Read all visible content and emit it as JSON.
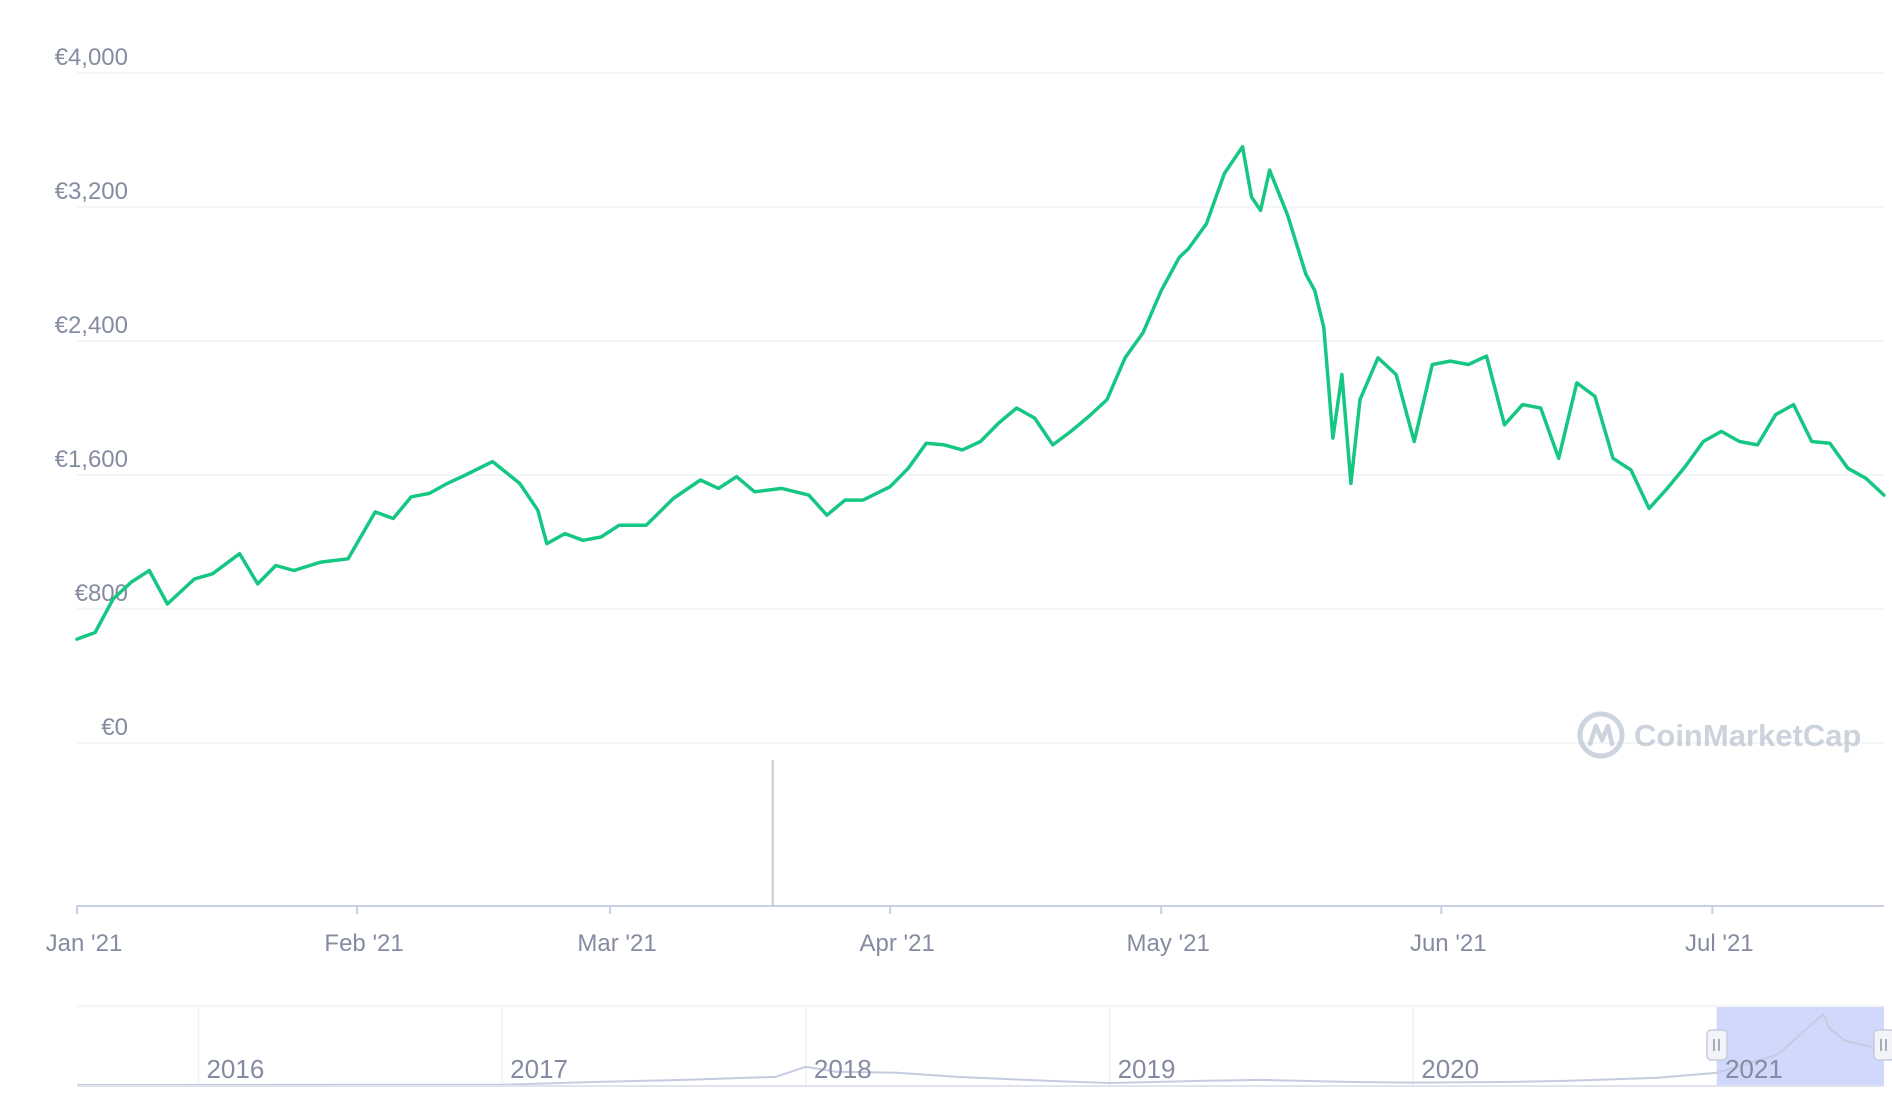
{
  "chart_data": {
    "type": "line",
    "currency": "EUR",
    "watermark": "CoinMarketCap",
    "ylim": [
      0,
      4000
    ],
    "y_ticks": [
      "€0",
      "€800",
      "€1,600",
      "€2,400",
      "€3,200",
      "€4,000"
    ],
    "y_tick_values": [
      0,
      800,
      1600,
      2400,
      3200,
      4000
    ],
    "x_ticks": [
      "Jan '21",
      "Feb '21",
      "Mar '21",
      "Apr '21",
      "May '21",
      "Jun '21",
      "Jul '21"
    ],
    "x_tick_dates": [
      "2021-01-01",
      "2021-02-01",
      "2021-03-01",
      "2021-04-01",
      "2021-05-01",
      "2021-06-01",
      "2021-07-01"
    ],
    "xlim": [
      "2021-01-01",
      "2021-07-20"
    ],
    "line_color": "#16c784",
    "grid": true,
    "series": [
      {
        "x": [
          "2021-01-01",
          "2021-01-03",
          "2021-01-05",
          "2021-01-07",
          "2021-01-09",
          "2021-01-11",
          "2021-01-12",
          "2021-01-14",
          "2021-01-16",
          "2021-01-19",
          "2021-01-21",
          "2021-01-23",
          "2021-01-25",
          "2021-01-28",
          "2021-01-31",
          "2021-02-03",
          "2021-02-05",
          "2021-02-07",
          "2021-02-09",
          "2021-02-11",
          "2021-02-13",
          "2021-02-16",
          "2021-02-19",
          "2021-02-21",
          "2021-02-22",
          "2021-02-24",
          "2021-02-26",
          "2021-02-28",
          "2021-03-02",
          "2021-03-05",
          "2021-03-08",
          "2021-03-11",
          "2021-03-13",
          "2021-03-15",
          "2021-03-17",
          "2021-03-20",
          "2021-03-23",
          "2021-03-25",
          "2021-03-27",
          "2021-03-29",
          "2021-04-01",
          "2021-04-03",
          "2021-04-05",
          "2021-04-07",
          "2021-04-09",
          "2021-04-11",
          "2021-04-13",
          "2021-04-15",
          "2021-04-17",
          "2021-04-19",
          "2021-04-21",
          "2021-04-23",
          "2021-04-25",
          "2021-04-27",
          "2021-04-29",
          "2021-05-01",
          "2021-05-03",
          "2021-05-04",
          "2021-05-06",
          "2021-05-08",
          "2021-05-10",
          "2021-05-11",
          "2021-05-12",
          "2021-05-13",
          "2021-05-15",
          "2021-05-17",
          "2021-05-18",
          "2021-05-19",
          "2021-05-20",
          "2021-05-21",
          "2021-05-22",
          "2021-05-23",
          "2021-05-25",
          "2021-05-27",
          "2021-05-29",
          "2021-05-31",
          "2021-06-02",
          "2021-06-04",
          "2021-06-06",
          "2021-06-08",
          "2021-06-10",
          "2021-06-12",
          "2021-06-14",
          "2021-06-16",
          "2021-06-18",
          "2021-06-20",
          "2021-06-22",
          "2021-06-24",
          "2021-06-26",
          "2021-06-28",
          "2021-06-30",
          "2021-07-02",
          "2021-07-04",
          "2021-07-06",
          "2021-07-08",
          "2021-07-10",
          "2021-07-12",
          "2021-07-14",
          "2021-07-16",
          "2021-07-18",
          "2021-07-20"
        ],
        "y": [
          620,
          660,
          860,
          960,
          1030,
          830,
          880,
          980,
          1010,
          1130,
          950,
          1060,
          1030,
          1080,
          1100,
          1380,
          1340,
          1470,
          1490,
          1550,
          1600,
          1680,
          1550,
          1390,
          1190,
          1250,
          1210,
          1230,
          1300,
          1300,
          1460,
          1570,
          1520,
          1590,
          1500,
          1520,
          1480,
          1360,
          1450,
          1450,
          1530,
          1640,
          1790,
          1780,
          1750,
          1800,
          1910,
          2000,
          1940,
          1780,
          1860,
          1950,
          2050,
          2300,
          2450,
          2700,
          2900,
          2950,
          3100,
          3400,
          3560,
          3260,
          3180,
          3420,
          3150,
          2800,
          2700,
          2480,
          1820,
          2200,
          1550,
          2050,
          2300,
          2200,
          1800,
          2260,
          2280,
          2260,
          2310,
          1900,
          2020,
          2000,
          1700,
          2150,
          2070,
          1700,
          1630,
          1400,
          1520,
          1650,
          1800,
          1860,
          1800,
          1780,
          1960,
          2020,
          1800,
          1790,
          1640,
          1580,
          1480
        ]
      }
    ],
    "volume": {
      "spike_date": "2021-03-19"
    },
    "navigator": {
      "ticks": [
        "2016",
        "2017",
        "2018",
        "2019",
        "2020",
        "2021"
      ],
      "tick_years": [
        2016,
        2017,
        2018,
        2019,
        2020,
        2021
      ],
      "range": [
        2015.6,
        2021.55
      ],
      "selected_range": [
        2021.0,
        2021.55
      ],
      "series": {
        "t": [
          2015.6,
          2016.0,
          2016.5,
          2017.0,
          2017.3,
          2017.6,
          2017.9,
          2018.0,
          2018.1,
          2018.3,
          2018.5,
          2018.8,
          2019.0,
          2019.3,
          2019.5,
          2019.8,
          2020.0,
          2020.3,
          2020.5,
          2020.8,
          2021.0,
          2021.2,
          2021.35,
          2021.37,
          2021.42,
          2021.5,
          2021.55
        ],
        "y": [
          0,
          5,
          10,
          10,
          150,
          250,
          400,
          900,
          650,
          600,
          400,
          200,
          100,
          200,
          250,
          150,
          120,
          150,
          200,
          350,
          600,
          1500,
          3500,
          2800,
          2200,
          1900,
          1500
        ]
      },
      "max_value": 3600
    }
  }
}
